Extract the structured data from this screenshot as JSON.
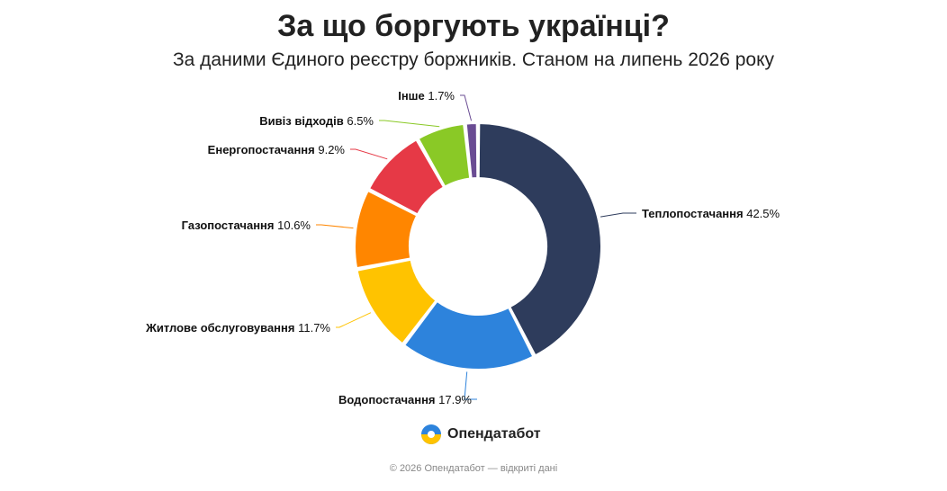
{
  "chart_data": {
    "type": "pie",
    "title": "За що боргують українці?",
    "subtitle": "За даними Єдиного реєстру боржників. Станом на липень 2026 року",
    "unit": "%",
    "slices": [
      {
        "label": "Теплопостачання",
        "value": 42.5,
        "color": "#2e3c5c"
      },
      {
        "label": "Водопостачання",
        "value": 17.9,
        "color": "#2d83dc"
      },
      {
        "label": "Житлове обслуговування",
        "value": 11.7,
        "color": "#ffc300"
      },
      {
        "label": "Газопостачання",
        "value": 10.6,
        "color": "#ff8600"
      },
      {
        "label": "Енергопостачання",
        "value": 9.2,
        "color": "#e63946"
      },
      {
        "label": "Вивіз відходів",
        "value": 6.5,
        "color": "#8ac926"
      },
      {
        "label": "Інше",
        "value": 1.7,
        "color": "#6a4c93"
      }
    ]
  },
  "brand": {
    "name": "Опендатабот"
  },
  "footer": {
    "text": "© 2026 Опендатабот — відкриті дані"
  }
}
